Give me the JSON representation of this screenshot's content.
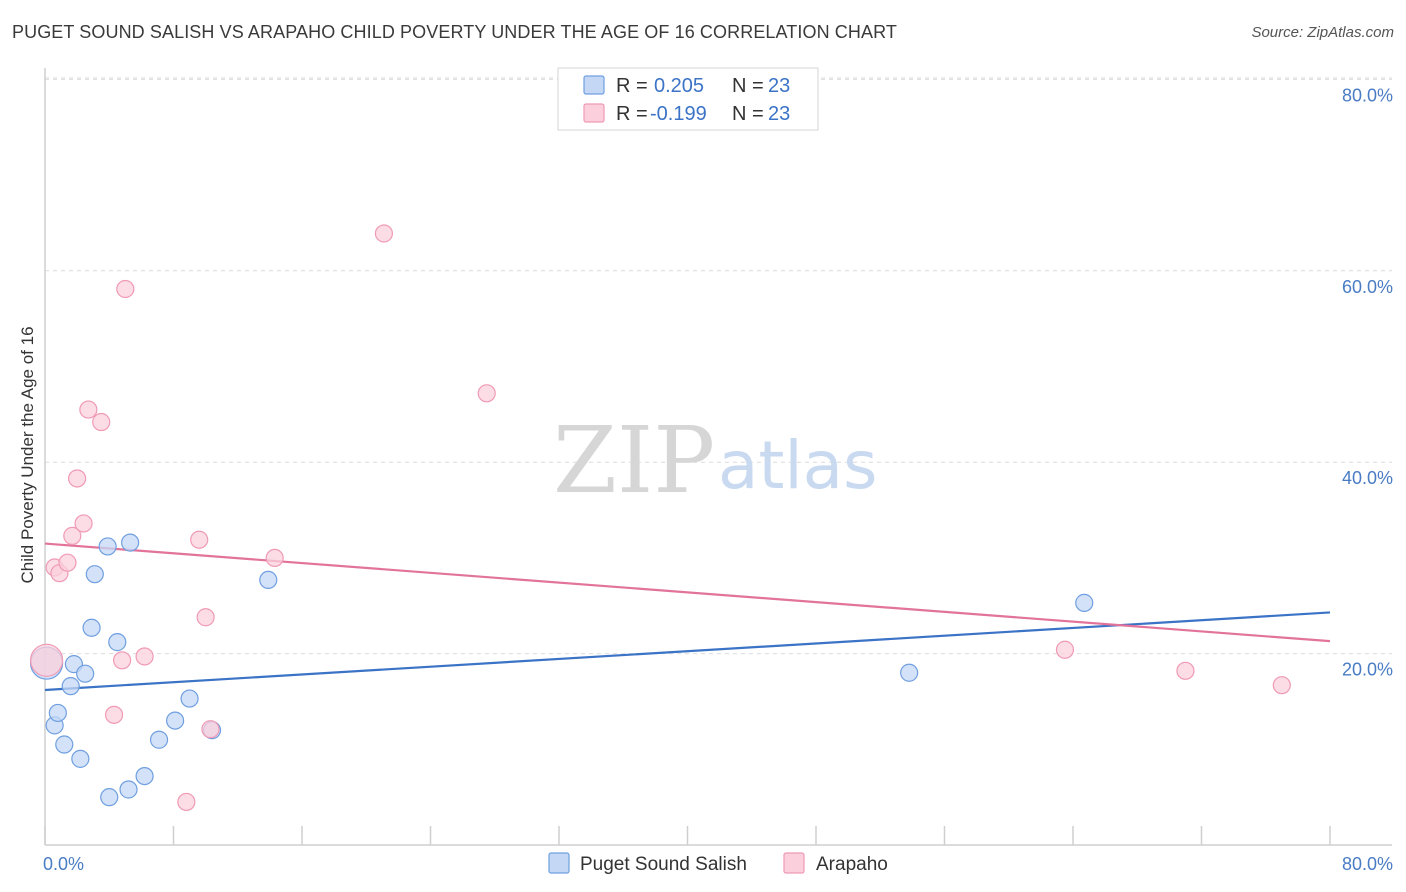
{
  "header": {
    "title": "PUGET SOUND SALISH VS ARAPAHO CHILD POVERTY UNDER THE AGE OF 16 CORRELATION CHART",
    "source": "Source: ZipAtlas.com"
  },
  "watermark": {
    "zip": "ZIP",
    "atlas": "atlas"
  },
  "legend": {
    "rows": [
      {
        "r_label": "R =",
        "r_value": "0.205",
        "n_label": "N =",
        "n_value": "23",
        "color": "#6f9fe0"
      },
      {
        "r_label": "R =",
        "r_value": "-0.199",
        "n_label": "N =",
        "n_value": "23",
        "color": "#f09ab5"
      }
    ]
  },
  "bottom_legend": [
    "Puget Sound Salish",
    "Arapaho"
  ],
  "chart_data": {
    "type": "scatter",
    "title": "PUGET SOUND SALISH VS ARAPAHO CHILD POVERTY UNDER THE AGE OF 16 CORRELATION CHART",
    "ylabel": "Child Poverty Under the Age of 16",
    "xlabel": "",
    "xlim": [
      0,
      80
    ],
    "ylim": [
      0,
      85
    ],
    "x_ticks": [
      "0.0%",
      "80.0%"
    ],
    "y_ticks": [
      {
        "value": 20,
        "label": "20.0%"
      },
      {
        "value": 40,
        "label": "40.0%"
      },
      {
        "value": 60,
        "label": "60.0%"
      },
      {
        "value": 80,
        "label": "80.0%"
      }
    ],
    "grid": true,
    "series": [
      {
        "name": "Puget Sound Salish",
        "color": "#6f9fe0",
        "trend": {
          "x": [
            0,
            80
          ],
          "y": [
            16.2,
            24.3
          ]
        },
        "points": [
          {
            "x": 0.1,
            "y": 19.0,
            "big": true
          },
          {
            "x": 0.6,
            "y": 12.5
          },
          {
            "x": 0.8,
            "y": 13.8
          },
          {
            "x": 1.2,
            "y": 10.5
          },
          {
            "x": 1.6,
            "y": 16.6
          },
          {
            "x": 1.8,
            "y": 18.9
          },
          {
            "x": 2.2,
            "y": 9.0
          },
          {
            "x": 2.5,
            "y": 17.9
          },
          {
            "x": 2.9,
            "y": 22.7
          },
          {
            "x": 3.1,
            "y": 28.3
          },
          {
            "x": 3.9,
            "y": 31.2
          },
          {
            "x": 4.0,
            "y": 5.0
          },
          {
            "x": 4.5,
            "y": 21.2
          },
          {
            "x": 5.2,
            "y": 5.8
          },
          {
            "x": 5.3,
            "y": 31.6
          },
          {
            "x": 6.2,
            "y": 7.2
          },
          {
            "x": 7.1,
            "y": 11.0
          },
          {
            "x": 8.1,
            "y": 13.0
          },
          {
            "x": 9.0,
            "y": 15.3
          },
          {
            "x": 10.4,
            "y": 12.0
          },
          {
            "x": 13.9,
            "y": 27.7
          },
          {
            "x": 53.8,
            "y": 18.0
          },
          {
            "x": 64.7,
            "y": 25.3
          }
        ]
      },
      {
        "name": "Arapaho",
        "color": "#f09ab5",
        "trend": {
          "x": [
            0,
            80
          ],
          "y": [
            31.5,
            21.3
          ]
        },
        "points": [
          {
            "x": 0.1,
            "y": 19.3,
            "big": true
          },
          {
            "x": 0.6,
            "y": 29.0
          },
          {
            "x": 0.9,
            "y": 28.4
          },
          {
            "x": 1.4,
            "y": 29.5
          },
          {
            "x": 1.7,
            "y": 32.3
          },
          {
            "x": 2.0,
            "y": 38.3
          },
          {
            "x": 2.4,
            "y": 33.6
          },
          {
            "x": 2.7,
            "y": 45.5
          },
          {
            "x": 3.5,
            "y": 44.2
          },
          {
            "x": 4.3,
            "y": 13.6
          },
          {
            "x": 4.8,
            "y": 19.3
          },
          {
            "x": 5.0,
            "y": 58.1
          },
          {
            "x": 6.2,
            "y": 19.7
          },
          {
            "x": 8.8,
            "y": 4.5
          },
          {
            "x": 9.6,
            "y": 31.9
          },
          {
            "x": 10.0,
            "y": 23.8
          },
          {
            "x": 10.3,
            "y": 12.1
          },
          {
            "x": 14.3,
            "y": 30.0
          },
          {
            "x": 21.1,
            "y": 63.9
          },
          {
            "x": 27.5,
            "y": 47.2
          },
          {
            "x": 63.5,
            "y": 20.4
          },
          {
            "x": 71.0,
            "y": 18.2
          },
          {
            "x": 77.0,
            "y": 16.7
          }
        ]
      }
    ]
  }
}
